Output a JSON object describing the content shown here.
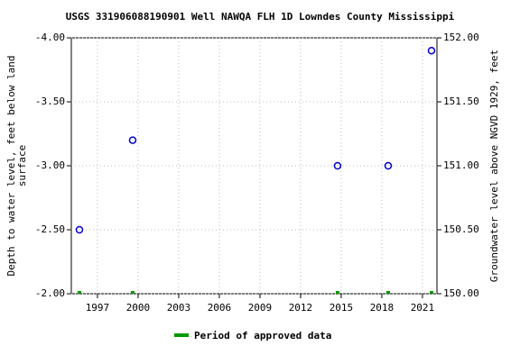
{
  "chart_data": {
    "type": "scatter",
    "title": "USGS 331906088190901 Well NAWQA FLH 1D Lowndes County Mississippi",
    "y_label": [
      "Depth to water level, feet below land",
      "surface"
    ],
    "y2_label": "Groundwater level above NGVD 1929, feet",
    "x": [
      1995.67,
      1999.6,
      2014.73,
      2018.47,
      2021.67
    ],
    "series": [
      {
        "name": "Depth to water level",
        "color": "#0000cc",
        "values": [
          -2.5,
          -3.2,
          -3.0,
          -3.0,
          -3.9
        ]
      }
    ],
    "approved": {
      "name": "Period of approved data",
      "color": "#009900"
    },
    "xlim": [
      1995.07,
      2022.07
    ],
    "xticks": [
      1997,
      2000,
      2003,
      2006,
      2009,
      2012,
      2015,
      2018,
      2021
    ],
    "ylim": [
      -4.0,
      -2.0
    ],
    "y_inverted": true,
    "yticks": [
      {
        "value": -4.0,
        "label": "-4.00"
      },
      {
        "value": -3.5,
        "label": "-3.50"
      },
      {
        "value": -3.0,
        "label": "-3.00"
      },
      {
        "value": -2.5,
        "label": "-2.50"
      },
      {
        "value": -2.0,
        "label": "-2.00"
      }
    ],
    "y2lim": [
      152.0,
      150.0
    ],
    "y2ticks": [
      {
        "value": 152.0,
        "label": "152.00"
      },
      {
        "value": 151.5,
        "label": "151.50"
      },
      {
        "value": 151.0,
        "label": "151.00"
      },
      {
        "value": 150.5,
        "label": "150.50"
      },
      {
        "value": 150.0,
        "label": "150.00"
      }
    ],
    "grid": true
  }
}
